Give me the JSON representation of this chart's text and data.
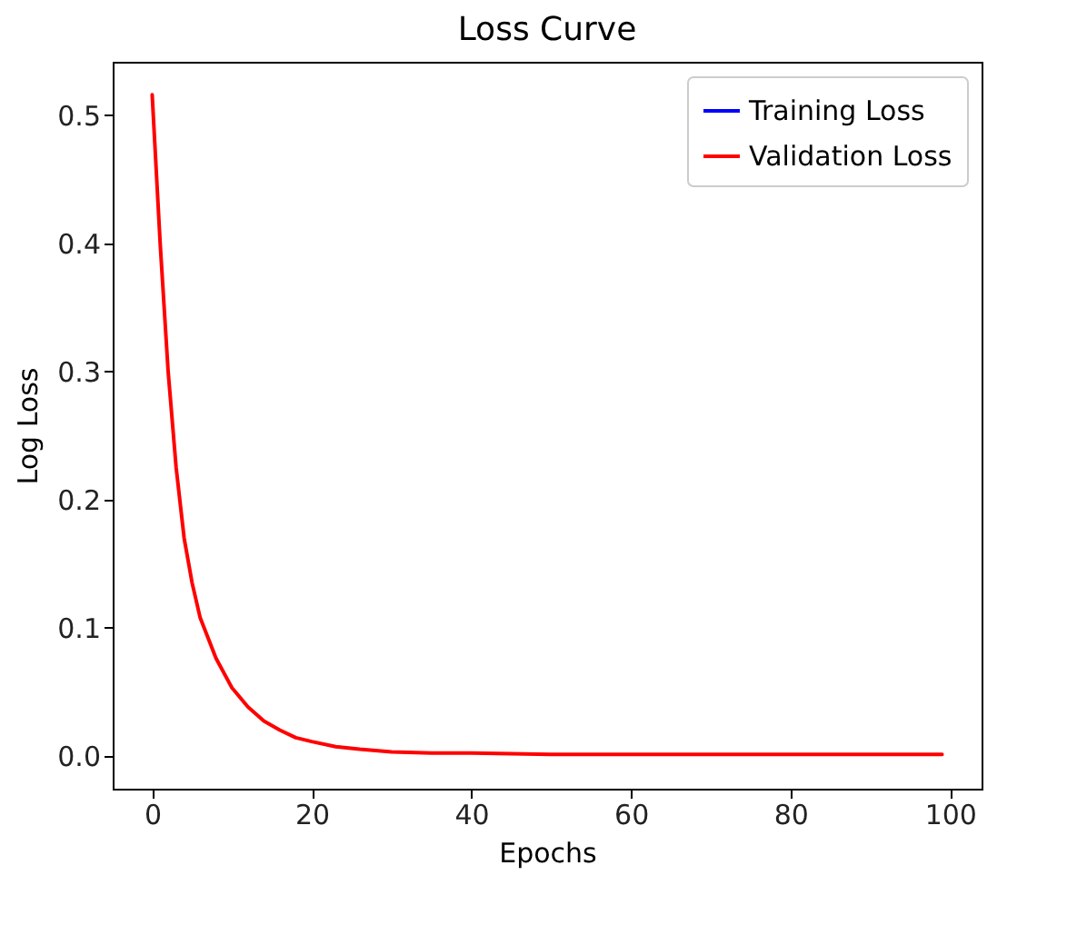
{
  "chart_data": {
    "type": "line",
    "title": "Loss Curve",
    "xlabel": "Epochs",
    "ylabel": "Log Loss",
    "x": [
      0,
      1,
      2,
      3,
      4,
      5,
      6,
      8,
      10,
      12,
      14,
      16,
      18,
      20,
      23,
      26,
      30,
      35,
      40,
      50,
      60,
      70,
      80,
      90,
      99
    ],
    "series": [
      {
        "name": "Training Loss",
        "color": "#0000ff",
        "values": [
          null,
          null,
          null,
          null,
          null,
          null,
          null,
          null,
          null,
          null,
          null,
          null,
          null,
          null,
          null,
          null,
          null,
          null,
          null,
          null,
          null,
          null,
          null,
          null,
          null
        ]
      },
      {
        "name": "Validation Loss",
        "color": "#ff0000",
        "values": [
          0.516,
          0.4,
          0.3,
          0.225,
          0.17,
          0.135,
          0.108,
          0.076,
          0.053,
          0.038,
          0.027,
          0.02,
          0.014,
          0.011,
          0.007,
          0.005,
          0.003,
          0.002,
          0.002,
          0.001,
          0.001,
          0.001,
          0.001,
          0.001,
          0.001
        ]
      }
    ],
    "xlim": [
      -4.95,
      103.95
    ],
    "xticks": [
      0,
      20,
      40,
      60,
      80,
      100
    ],
    "ylim": [
      -0.0258,
      0.5418
    ],
    "yticks": [
      {
        "value": 0,
        "label": "0.0"
      },
      0.1,
      0.2,
      0.3,
      0.4,
      0.5
    ],
    "grid": false,
    "legend": "top right",
    "marker": "none",
    "line_style": "solid"
  }
}
